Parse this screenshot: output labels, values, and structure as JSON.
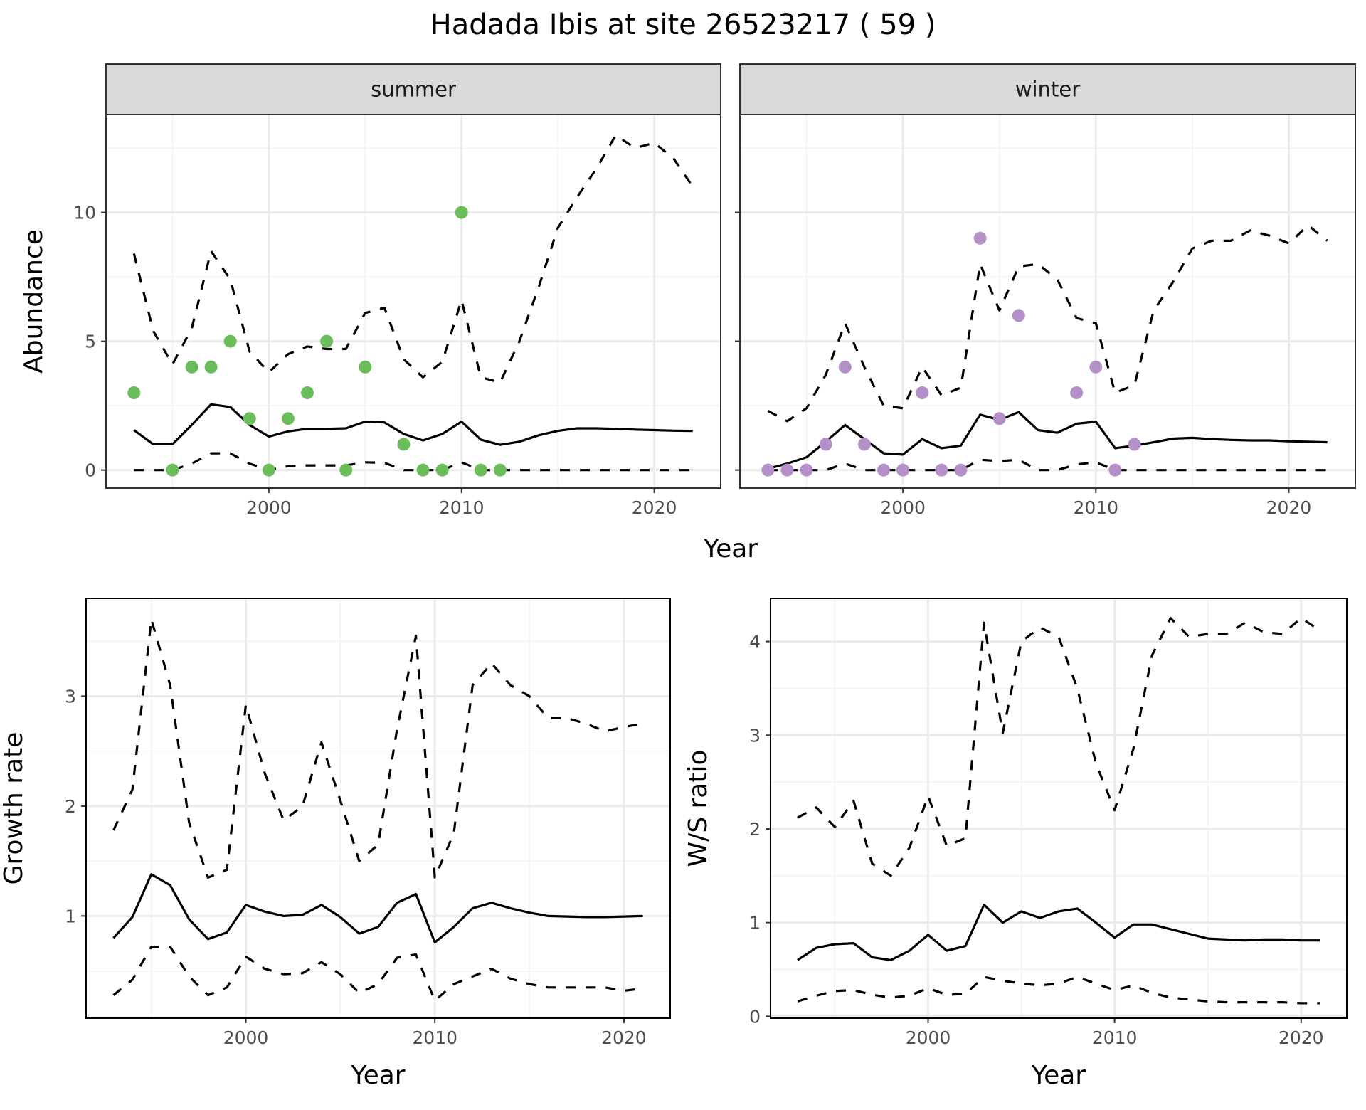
{
  "title": "Hadada Ibis at site 26523217 ( 59 )",
  "chart_data": [
    {
      "type": "line",
      "facet": "summer",
      "xlabel": "Year",
      "ylabel": "Abundance",
      "xlim": [
        1991.55,
        2023.45
      ],
      "ylim": [
        -0.7,
        13.8
      ],
      "xticks": [
        2000,
        2010,
        2020
      ],
      "yticks": [
        0,
        5,
        10
      ],
      "grid": true,
      "point_color": "#6abd5a",
      "x": [
        1993,
        1994,
        1995,
        1996,
        1997,
        1998,
        1999,
        2000,
        2001,
        2002,
        2003,
        2004,
        2005,
        2006,
        2007,
        2008,
        2009,
        2010,
        2011,
        2012,
        2013,
        2014,
        2015,
        2016,
        2017,
        2018,
        2019,
        2020,
        2021,
        2022
      ],
      "mean": [
        1.55,
        1.0,
        1.0,
        1.75,
        2.55,
        2.45,
        1.75,
        1.3,
        1.5,
        1.6,
        1.6,
        1.62,
        1.88,
        1.85,
        1.4,
        1.15,
        1.4,
        1.88,
        1.18,
        0.98,
        1.1,
        1.35,
        1.52,
        1.62,
        1.62,
        1.6,
        1.57,
        1.55,
        1.53,
        1.52
      ],
      "upper": [
        8.4,
        5.4,
        4.1,
        5.5,
        8.5,
        7.4,
        4.6,
        3.8,
        4.5,
        4.8,
        4.7,
        4.7,
        6.1,
        6.3,
        4.3,
        3.6,
        4.2,
        6.6,
        3.6,
        3.4,
        5.0,
        7.1,
        9.4,
        10.6,
        11.7,
        13.0,
        12.5,
        12.7,
        12.1,
        11.0
      ],
      "lower": [
        0,
        0,
        0,
        0.25,
        0.65,
        0.65,
        0.25,
        0,
        0.15,
        0.18,
        0.18,
        0.18,
        0.3,
        0.28,
        0,
        0,
        0,
        0.3,
        0,
        0,
        0,
        0,
        0,
        0,
        0,
        0,
        0,
        0,
        0,
        0
      ],
      "points": [
        [
          1993,
          3
        ],
        [
          1995,
          0
        ],
        [
          1996,
          4
        ],
        [
          1997,
          4
        ],
        [
          1998,
          5
        ],
        [
          1999,
          2
        ],
        [
          2000,
          0
        ],
        [
          2001,
          2
        ],
        [
          2002,
          3
        ],
        [
          2003,
          5
        ],
        [
          2004,
          0
        ],
        [
          2005,
          4
        ],
        [
          2007,
          1
        ],
        [
          2008,
          0
        ],
        [
          2009,
          0
        ],
        [
          2010,
          10
        ],
        [
          2011,
          0
        ],
        [
          2012,
          0
        ]
      ]
    },
    {
      "type": "line",
      "facet": "winter",
      "xlabel": "Year",
      "ylabel": "Abundance",
      "xlim": [
        1991.55,
        2023.45
      ],
      "ylim": [
        -0.7,
        13.8
      ],
      "xticks": [
        2000,
        2010,
        2020
      ],
      "yticks": [
        0,
        5,
        10
      ],
      "grid": true,
      "point_color": "#b48fc8",
      "x": [
        1993,
        1994,
        1995,
        1996,
        1997,
        1998,
        1999,
        2000,
        2001,
        2002,
        2003,
        2004,
        2005,
        2006,
        2007,
        2008,
        2009,
        2010,
        2011,
        2012,
        2013,
        2014,
        2015,
        2016,
        2017,
        2018,
        2019,
        2020,
        2021,
        2022
      ],
      "mean": [
        0.05,
        0.25,
        0.5,
        1.1,
        1.75,
        1.2,
        0.65,
        0.6,
        1.2,
        0.85,
        0.95,
        2.15,
        1.95,
        2.25,
        1.55,
        1.45,
        1.8,
        1.88,
        0.85,
        0.95,
        1.08,
        1.22,
        1.25,
        1.2,
        1.17,
        1.15,
        1.15,
        1.12,
        1.1,
        1.08
      ],
      "upper": [
        2.3,
        1.9,
        2.4,
        3.7,
        5.7,
        4.0,
        2.5,
        2.4,
        4.0,
        2.9,
        3.2,
        8.0,
        6.2,
        7.9,
        8.0,
        7.4,
        5.9,
        5.7,
        3.0,
        3.3,
        6.2,
        7.3,
        8.6,
        8.9,
        8.9,
        9.3,
        9.1,
        8.8,
        9.5,
        8.9
      ],
      "lower": [
        0,
        0,
        0,
        0,
        0.25,
        0,
        0,
        0,
        0,
        0,
        0,
        0.4,
        0.35,
        0.4,
        0,
        0,
        0.22,
        0.3,
        0,
        0,
        0,
        0,
        0,
        0,
        0,
        0,
        0,
        0,
        0,
        0
      ],
      "points": [
        [
          1993,
          0
        ],
        [
          1994,
          0
        ],
        [
          1995,
          0
        ],
        [
          1996,
          1
        ],
        [
          1997,
          4
        ],
        [
          1998,
          1
        ],
        [
          1999,
          0
        ],
        [
          2000,
          0
        ],
        [
          2001,
          3
        ],
        [
          2002,
          0
        ],
        [
          2003,
          0
        ],
        [
          2004,
          9
        ],
        [
          2005,
          2
        ],
        [
          2006,
          6
        ],
        [
          2009,
          3
        ],
        [
          2010,
          4
        ],
        [
          2011,
          0
        ],
        [
          2012,
          1
        ]
      ]
    },
    {
      "type": "line",
      "xlabel": "Year",
      "ylabel": "Growth rate",
      "xlim": [
        1991.55,
        2022.45
      ],
      "ylim": [
        0.07,
        3.89
      ],
      "xticks": [
        2000,
        2010,
        2020
      ],
      "yticks": [
        1,
        2,
        3
      ],
      "grid": true,
      "x": [
        1993,
        1994,
        1995,
        1996,
        1997,
        1998,
        1999,
        2000,
        2001,
        2002,
        2003,
        2004,
        2005,
        2006,
        2007,
        2008,
        2009,
        2010,
        2011,
        2012,
        2013,
        2014,
        2015,
        2016,
        2017,
        2018,
        2019,
        2020,
        2021
      ],
      "mean": [
        0.8,
        0.99,
        1.38,
        1.28,
        0.97,
        0.79,
        0.85,
        1.1,
        1.04,
        1.0,
        1.01,
        1.1,
        0.99,
        0.84,
        0.9,
        1.12,
        1.2,
        0.76,
        0.9,
        1.07,
        1.12,
        1.07,
        1.03,
        1.0,
        0.995,
        0.99,
        0.99,
        0.995,
        1.0
      ],
      "upper": [
        1.78,
        2.15,
        3.7,
        3.1,
        1.85,
        1.35,
        1.42,
        2.92,
        2.3,
        1.87,
        2.0,
        2.58,
        2.05,
        1.5,
        1.65,
        2.7,
        3.55,
        1.35,
        1.75,
        3.1,
        3.3,
        3.1,
        3.0,
        2.8,
        2.8,
        2.75,
        2.68,
        2.72,
        2.75
      ],
      "lower": [
        0.28,
        0.42,
        0.72,
        0.72,
        0.45,
        0.28,
        0.35,
        0.63,
        0.52,
        0.47,
        0.48,
        0.58,
        0.47,
        0.3,
        0.38,
        0.62,
        0.65,
        0.23,
        0.38,
        0.45,
        0.52,
        0.43,
        0.38,
        0.35,
        0.35,
        0.35,
        0.35,
        0.32,
        0.34
      ]
    },
    {
      "type": "line",
      "xlabel": "Year",
      "ylabel": "W/S ratio",
      "xlim": [
        1991.55,
        2022.45
      ],
      "ylim": [
        -0.02,
        4.46
      ],
      "xticks": [
        2000,
        2010,
        2020
      ],
      "yticks": [
        0,
        1,
        2,
        3,
        4
      ],
      "grid": true,
      "x": [
        1993,
        1994,
        1995,
        1996,
        1997,
        1998,
        1999,
        2000,
        2001,
        2002,
        2003,
        2004,
        2005,
        2006,
        2007,
        2008,
        2009,
        2010,
        2011,
        2012,
        2013,
        2014,
        2015,
        2016,
        2017,
        2018,
        2019,
        2020,
        2021
      ],
      "mean": [
        0.6,
        0.73,
        0.77,
        0.78,
        0.63,
        0.6,
        0.7,
        0.87,
        0.7,
        0.75,
        1.19,
        1.0,
        1.12,
        1.05,
        1.12,
        1.15,
        1.0,
        0.84,
        0.98,
        0.98,
        0.93,
        0.88,
        0.83,
        0.82,
        0.81,
        0.82,
        0.82,
        0.81,
        0.81
      ],
      "upper": [
        2.12,
        2.23,
        2.02,
        2.3,
        1.63,
        1.5,
        1.8,
        2.35,
        1.82,
        1.9,
        4.2,
        3.02,
        4.0,
        4.15,
        4.05,
        3.5,
        2.7,
        2.2,
        2.85,
        3.85,
        4.25,
        4.05,
        4.08,
        4.08,
        4.2,
        4.1,
        4.08,
        4.25,
        4.12
      ],
      "lower": [
        0.16,
        0.22,
        0.27,
        0.28,
        0.23,
        0.2,
        0.22,
        0.3,
        0.23,
        0.24,
        0.42,
        0.38,
        0.35,
        0.33,
        0.35,
        0.42,
        0.35,
        0.28,
        0.33,
        0.25,
        0.2,
        0.18,
        0.16,
        0.15,
        0.15,
        0.15,
        0.15,
        0.14,
        0.14
      ]
    }
  ]
}
